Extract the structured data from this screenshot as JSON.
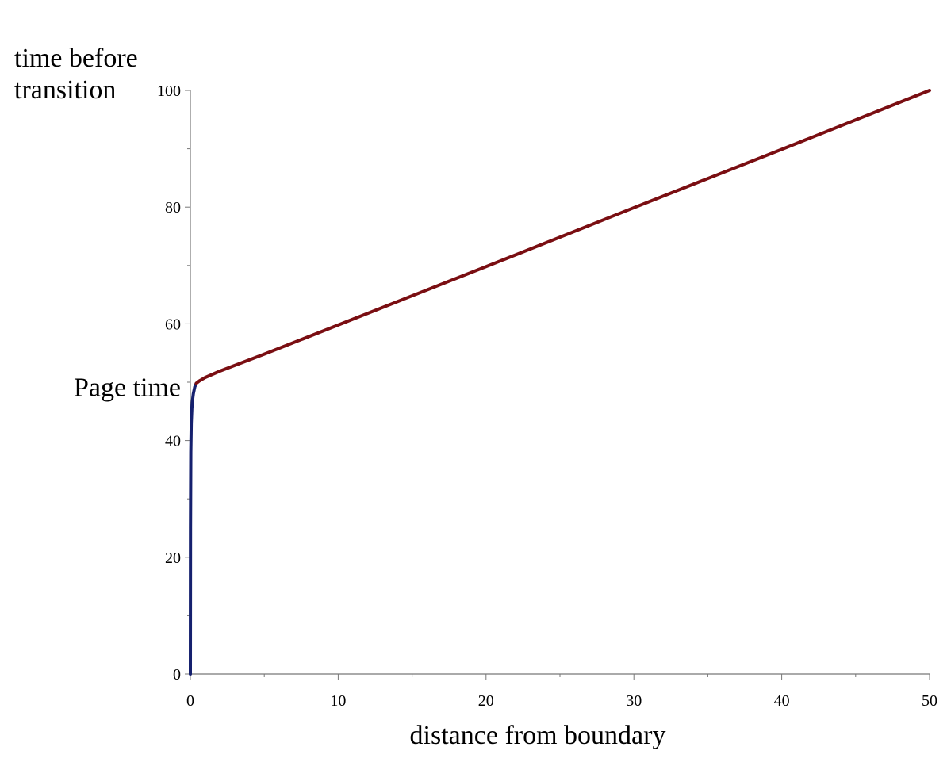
{
  "chart_data": {
    "type": "line",
    "title": "",
    "xlabel": "distance from boundary",
    "ylabel": [
      "time before",
      "transition"
    ],
    "xlim": [
      0,
      50
    ],
    "ylim": [
      0,
      100
    ],
    "xticks": [
      0,
      10,
      20,
      30,
      40,
      50
    ],
    "yticks": [
      0,
      20,
      40,
      60,
      80,
      100
    ],
    "grid": false,
    "annotations": [
      {
        "text": "Page time",
        "y": 49
      }
    ],
    "series": [
      {
        "color": "#15206e",
        "x": [
          0,
          0.01,
          0.03,
          0.06,
          0.1,
          0.15,
          0.2,
          0.3,
          0.4
        ],
        "y": [
          0,
          25,
          38,
          43,
          45.5,
          47,
          48,
          49.2,
          49.8
        ]
      },
      {
        "color": "#7a0e12",
        "x": [
          0.4,
          0.6,
          1,
          2,
          5,
          10,
          20,
          30,
          40,
          50
        ],
        "y": [
          49.8,
          50.2,
          50.8,
          51.9,
          54.8,
          59.8,
          69.8,
          79.9,
          89.9,
          100
        ]
      }
    ]
  }
}
